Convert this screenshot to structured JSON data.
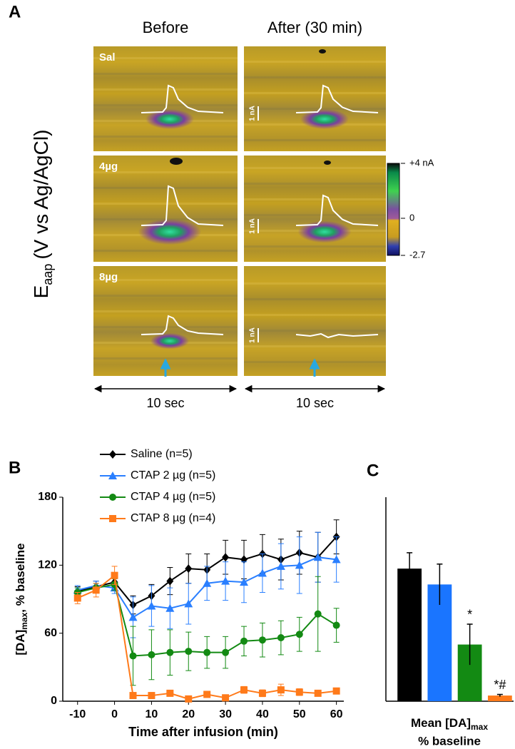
{
  "panel_a": {
    "label": "A",
    "columns": [
      "Before",
      "After (30 min)"
    ],
    "rows": [
      "Sal",
      "4µg",
      "8µg"
    ],
    "scale_bars": [
      "1 nA",
      "1 nA",
      "1 nA"
    ],
    "colorbar": {
      "lim": [
        -2.7,
        4
      ],
      "ticks": [
        {
          "value": 4,
          "label": "+4 nA"
        },
        0,
        -2.7
      ]
    },
    "time_labels": [
      "10 sec",
      "10 sec"
    ],
    "y_label": {
      "main": "E",
      "sub": "aap",
      "rest": "(V vs Ag/AgCl)"
    }
  },
  "chart_data": [
    {
      "type": "line",
      "panel": "B",
      "y_label": {
        "main": "[DA]",
        "sub": "max",
        "rest": ", % baseline"
      },
      "x_label": "Time after infusion (min)",
      "x": [
        -10,
        -5,
        0,
        5,
        10,
        15,
        20,
        25,
        30,
        35,
        40,
        45,
        50,
        55,
        60
      ],
      "xlim": [
        -14,
        62
      ],
      "xticks": [
        -10,
        0,
        10,
        20,
        30,
        40,
        50,
        60
      ],
      "ylim": [
        0,
        180
      ],
      "yticks": [
        0,
        60,
        120,
        180
      ],
      "series": [
        {
          "name": "Saline (n=5)",
          "color": "#000000",
          "marker": "diamond",
          "values": [
            97,
            101,
            105,
            85,
            93,
            106,
            117,
            116,
            127,
            125,
            130,
            125,
            131,
            127,
            145
          ],
          "errors": [
            4,
            5,
            5,
            8,
            10,
            12,
            13,
            14,
            15,
            17,
            17,
            18,
            19,
            22,
            15
          ]
        },
        {
          "name": "CTAP 2 µg (n=5)",
          "color": "#2a7fff",
          "marker": "triangle",
          "values": [
            98,
            102,
            100,
            74,
            84,
            82,
            86,
            104,
            106,
            105,
            113,
            119,
            120,
            127,
            125
          ],
          "errors": [
            4,
            4,
            5,
            18,
            18,
            18,
            18,
            15,
            17,
            18,
            17,
            20,
            25,
            22,
            20
          ]
        },
        {
          "name": "CTAP 4 µg (n=5)",
          "color": "#138a13",
          "marker": "circle",
          "values": [
            96,
            100,
            103,
            40,
            41,
            43,
            44,
            43,
            43,
            53,
            54,
            56,
            59,
            77,
            67
          ],
          "errors": [
            4,
            4,
            5,
            26,
            22,
            20,
            17,
            14,
            14,
            13,
            15,
            15,
            15,
            33,
            15
          ]
        },
        {
          "name": "CTAP 8 µg (n=4)",
          "color": "#ff7a1a",
          "marker": "square",
          "values": [
            91,
            98,
            111,
            5,
            5,
            7,
            2,
            6,
            3,
            10,
            7,
            10,
            8,
            7,
            9
          ],
          "errors": [
            5,
            6,
            8,
            2,
            2,
            2,
            1,
            2,
            2,
            3,
            3,
            5,
            3,
            2,
            2
          ]
        }
      ]
    },
    {
      "type": "bar",
      "panel": "C",
      "x_label": {
        "main": "Mean [DA]",
        "sub": "max",
        "line2": "% baseline"
      },
      "ylim": [
        0,
        180
      ],
      "values": [
        117,
        103,
        50,
        5
      ],
      "errors": [
        14,
        18,
        18,
        1
      ],
      "colors": [
        "#000000",
        "#1a75ff",
        "#138a13",
        "#ff7a1a"
      ],
      "bar_annotations": [
        null,
        null,
        "*",
        "*#"
      ]
    }
  ]
}
